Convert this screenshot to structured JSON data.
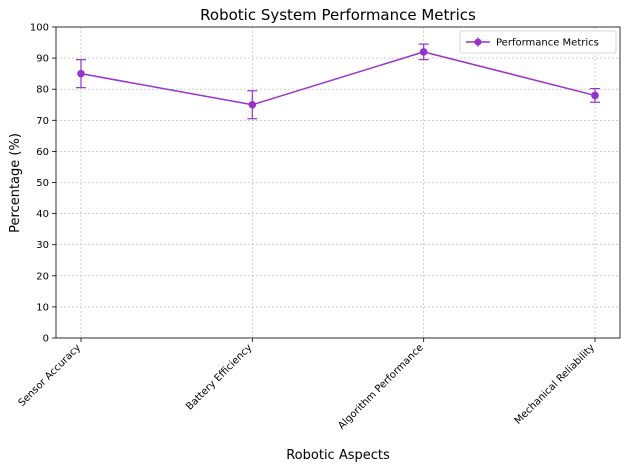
{
  "chart_data": {
    "type": "line",
    "title": "Robotic System Performance Metrics",
    "xlabel": "Robotic Aspects",
    "ylabel": "Percentage (%)",
    "categories": [
      "Sensor Accuracy",
      "Battery Efficiency",
      "Algorithm Performance",
      "Mechanical Reliability"
    ],
    "series": [
      {
        "name": "Performance Metrics",
        "values": [
          85,
          75,
          92,
          78
        ],
        "errors": [
          4.5,
          4.5,
          2.5,
          2.2
        ],
        "color": "#9932cc"
      }
    ],
    "ylim": [
      0,
      100
    ],
    "yticks": [
      "0",
      "10",
      "20",
      "30",
      "40",
      "50",
      "60",
      "70",
      "80",
      "90",
      "100"
    ],
    "grid": true,
    "legend_position": "top-right"
  }
}
